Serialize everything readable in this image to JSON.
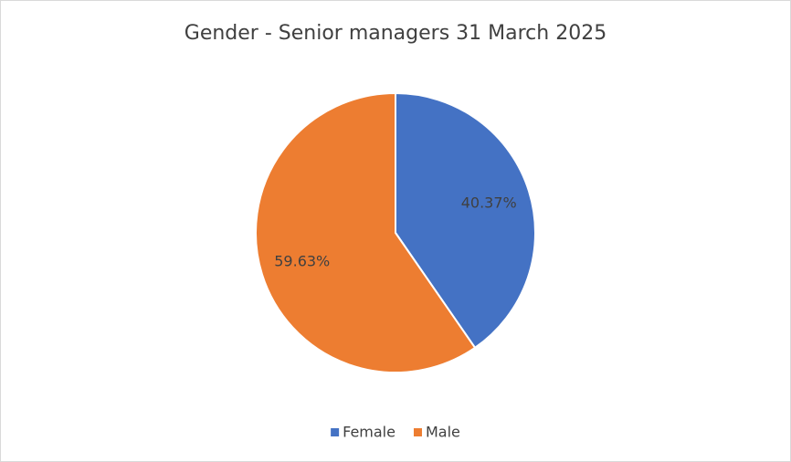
{
  "chart_data": {
    "type": "pie",
    "title": "Gender - Senior managers 31 March 2025",
    "categories": [
      "Female",
      "Male"
    ],
    "values": [
      40.37,
      59.63
    ],
    "value_labels": [
      "40.37%",
      "59.63%"
    ],
    "colors": [
      "#4472c4",
      "#ed7d31"
    ],
    "legend": "bottom"
  }
}
